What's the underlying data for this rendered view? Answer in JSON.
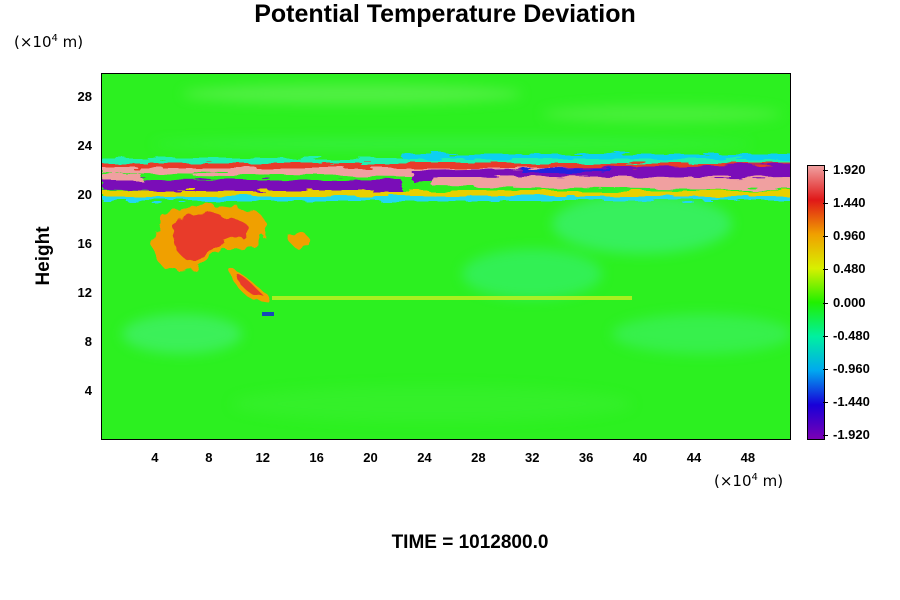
{
  "chart_data": {
    "type": "heatmap",
    "title": "Potential Temperature Deviation",
    "ylabel": "Height",
    "y_unit_parts": [
      "(×10",
      "4",
      " m)"
    ],
    "x_unit_parts": [
      "(×10",
      "4",
      " m)"
    ],
    "x_ticks": [
      "4",
      "8",
      "12",
      "16",
      "20",
      "24",
      "28",
      "32",
      "36",
      "40",
      "44",
      "48"
    ],
    "y_ticks": [
      "4",
      "8",
      "12",
      "16",
      "20",
      "24",
      "28"
    ],
    "xlim": [
      0,
      51.2
    ],
    "ylim": [
      0,
      30
    ],
    "colorbar": {
      "range": [
        -1.92,
        1.92
      ],
      "labels": [
        "1.920",
        "1.440",
        "0.960",
        "0.480",
        "0.000",
        "-0.480",
        "-0.960",
        "-1.440",
        "-1.920"
      ],
      "colors": [
        "#7a00b4",
        "#1800d8",
        "#00a8f0",
        "#00f0a0",
        "#20f000",
        "#d8f000",
        "#f0a000",
        "#e01818",
        "#f0a0a0"
      ]
    },
    "background_color": "#2cf020",
    "features": [
      {
        "name": "warm band",
        "y": 20.6,
        "value": 1.92
      },
      {
        "name": "cold band",
        "y": 21.6,
        "value": -1.92
      },
      {
        "name": "warm plume",
        "x": 8,
        "y": 16,
        "value": 1.4
      }
    ],
    "footer": "TIME = 1012800.0"
  }
}
